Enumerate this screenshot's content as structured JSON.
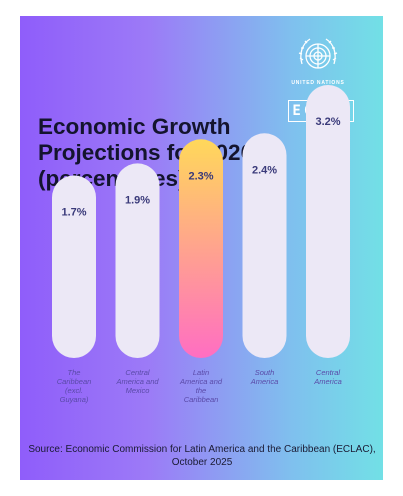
{
  "header": {
    "title": "Economic Growth Projections for 2026 (percentages)",
    "org_name": "UNITED NATIONS",
    "org_logo_text": "ECLAC"
  },
  "chart_data": {
    "type": "bar",
    "title": "Economic Growth Projections for 2026 (percentages)",
    "categories": [
      "The Caribbean (excl. Guyana)",
      "Central America and Mexico",
      "Latin America and the Caribbean",
      "South America",
      "Central America"
    ],
    "values": [
      1.7,
      1.9,
      2.3,
      2.4,
      3.2
    ],
    "value_labels": [
      "1.7%",
      "1.9%",
      "2.3%",
      "2.4%",
      "3.2%"
    ],
    "highlighted_category": "Latin America and the Caribbean",
    "xlabel": "",
    "ylabel": "",
    "unit": "%",
    "grid": false
  },
  "footer": {
    "source": "Source: Economic Commission for Latin America and the Caribbean (ECLAC), October 2025"
  },
  "colors": {
    "bar": "#ece8f6",
    "highlight_top": "#ffd85a",
    "highlight_bottom": "#ff6ec2",
    "value_text": "#3a3a7a",
    "category_text": "#5a4aa8"
  }
}
